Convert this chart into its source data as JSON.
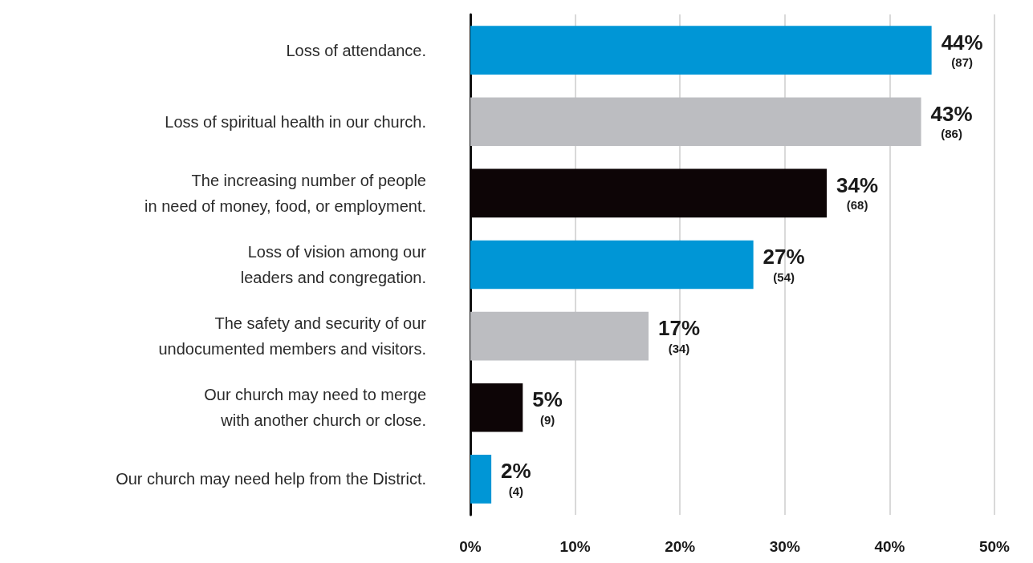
{
  "chart_data": {
    "type": "bar",
    "orientation": "horizontal",
    "categories": [
      "Loss of attendance.",
      "Loss of spiritual health in our church.",
      "The increasing number of people\nin need of money, food, or employment.",
      "Loss of vision among our\nleaders and congregation.",
      "The safety and security of our\nundocumented members and visitors.",
      "Our church may need to merge\nwith another church or close.",
      "Our church may need help from the District."
    ],
    "values": [
      44,
      43,
      34,
      27,
      17,
      5,
      2
    ],
    "colors": [
      "#0096d6",
      "#bcbdc1",
      "#0d0506",
      "#0096d6",
      "#bcbdc1",
      "#0d0506",
      "#0096d6"
    ],
    "value_labels": [
      "44%\n(87)",
      "43%\n(86)",
      "34%\n(68)",
      "27%\n(54)",
      "17%\n(34)",
      "5%\n(9)",
      "2%\n(4)"
    ],
    "xlim": [
      0,
      50
    ],
    "xticks": [
      {
        "value": 0,
        "label": "0%"
      },
      {
        "value": 10,
        "label": "10%"
      },
      {
        "value": 20,
        "label": "20%"
      },
      {
        "value": 30,
        "label": "30%"
      },
      {
        "value": 40,
        "label": "40%"
      },
      {
        "value": 50,
        "label": "50%"
      }
    ],
    "grid": "x"
  }
}
